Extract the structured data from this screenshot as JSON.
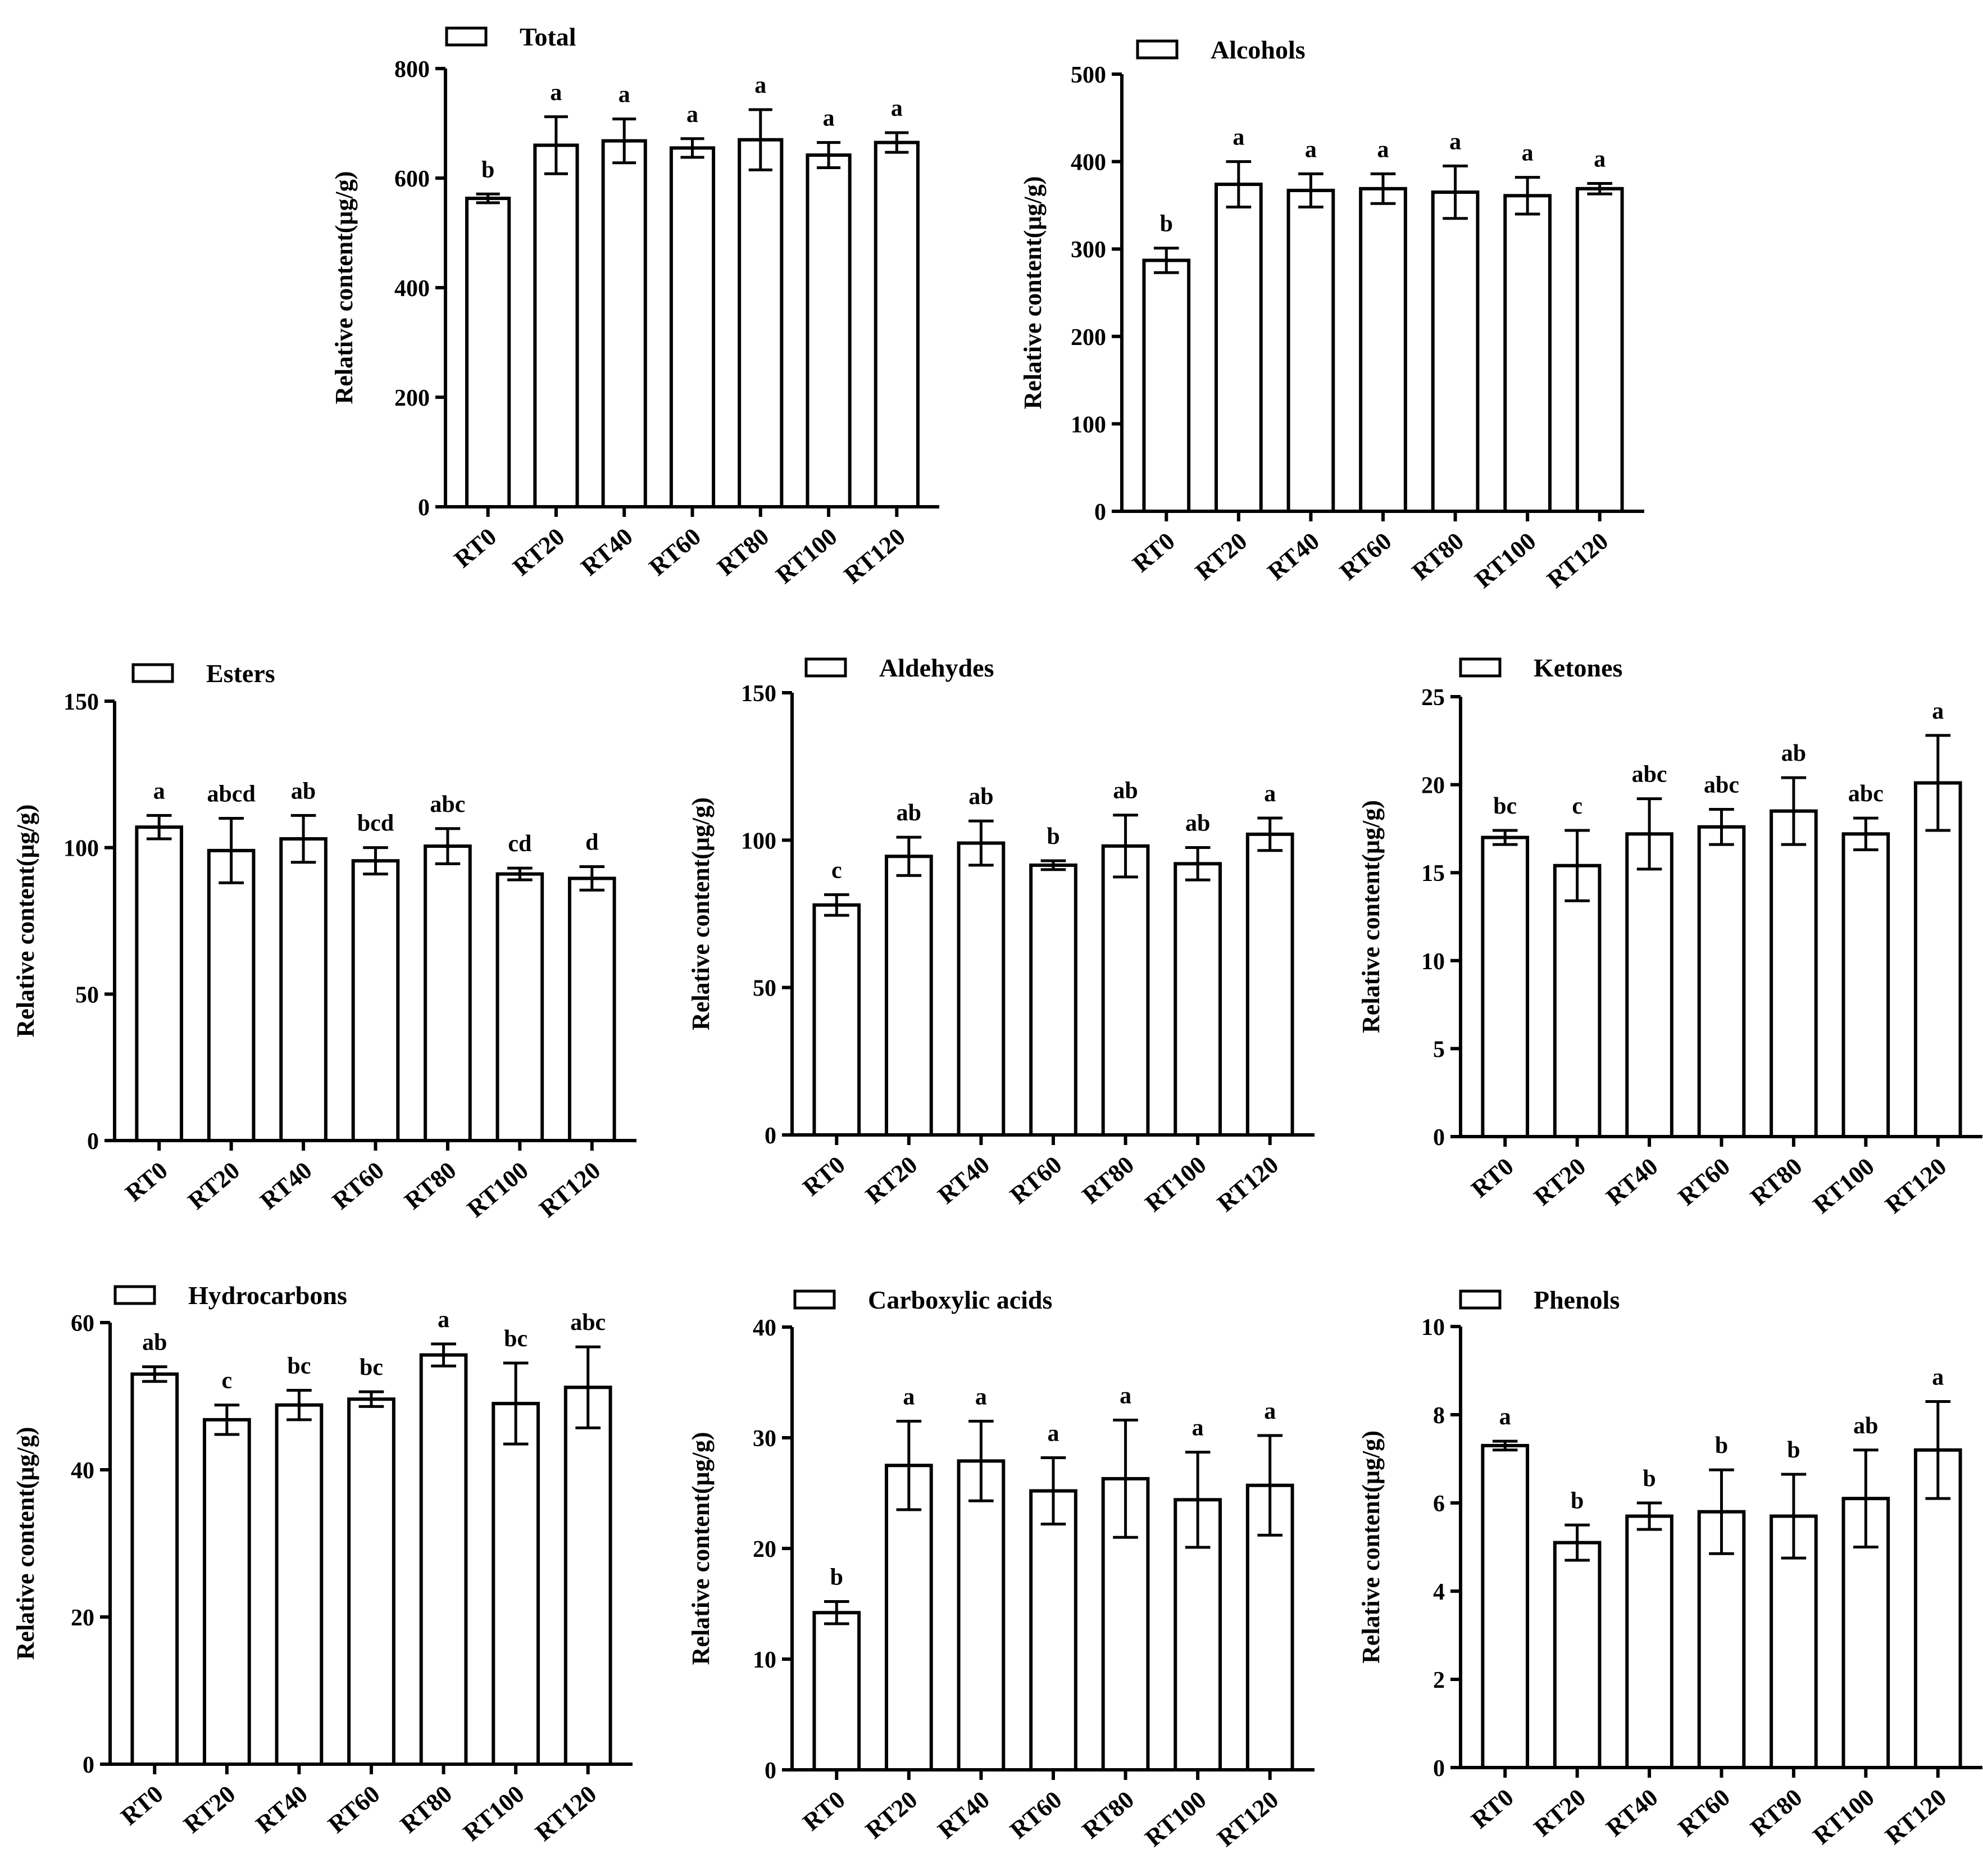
{
  "chart_data": [
    {
      "type": "bar",
      "title": "Total",
      "legend": "Total",
      "ylabel": "Relative content(μg/g)",
      "ylim": [
        0,
        800
      ],
      "yticks": [
        0,
        200,
        400,
        600,
        800
      ],
      "ytick_labels": [
        "0",
        "200",
        "400",
        "600",
        "800"
      ],
      "categories": [
        "RT0",
        "RT20",
        "RT40",
        "RT60",
        "RT80",
        "RT100",
        "RT120"
      ],
      "values": [
        563,
        660,
        668,
        655,
        670,
        642,
        665
      ],
      "errors": [
        8,
        52,
        40,
        17,
        55,
        23,
        18
      ],
      "significance": [
        "b",
        "a",
        "a",
        "a",
        "a",
        "a",
        "a"
      ]
    },
    {
      "type": "bar",
      "title": "Alcohols",
      "legend": "Alcohols",
      "ylabel": "Relative content(μg/g)",
      "ylim": [
        0,
        500
      ],
      "yticks": [
        0,
        100,
        200,
        300,
        400,
        500
      ],
      "ytick_labels": [
        "0",
        "100",
        "200",
        "300",
        "400",
        "500"
      ],
      "categories": [
        "RT0",
        "RT20",
        "RT40",
        "RT60",
        "RT80",
        "RT100",
        "RT120"
      ],
      "values": [
        287,
        374,
        367,
        369,
        365,
        361,
        369
      ],
      "errors": [
        14,
        26,
        19,
        17,
        30,
        21,
        6
      ],
      "significance": [
        "b",
        "a",
        "a",
        "a",
        "a",
        "a",
        "a"
      ]
    },
    {
      "type": "bar",
      "title": "Esters",
      "legend": "Esters",
      "ylabel": "Relative content(μg/g)",
      "ylim": [
        0,
        150
      ],
      "yticks": [
        0,
        50,
        100,
        150
      ],
      "ytick_labels": [
        "0",
        "50",
        "100",
        "150"
      ],
      "categories": [
        "RT0",
        "RT20",
        "RT40",
        "RT60",
        "RT80",
        "RT100",
        "RT120"
      ],
      "values": [
        107,
        99,
        103,
        95.5,
        100.5,
        91,
        89.5
      ],
      "errors": [
        4,
        11,
        8,
        4.5,
        6,
        2,
        4
      ],
      "significance": [
        "a",
        "abcd",
        "ab",
        "bcd",
        "abc",
        "cd",
        "d"
      ]
    },
    {
      "type": "bar",
      "title": "Aldehydes",
      "legend": "Aldehydes",
      "ylabel": "Relative content(μg/g)",
      "ylim": [
        0,
        150
      ],
      "yticks": [
        0,
        50,
        100,
        150
      ],
      "ytick_labels": [
        "0",
        "50",
        "100",
        "150"
      ],
      "categories": [
        "RT0",
        "RT20",
        "RT40",
        "RT60",
        "RT80",
        "RT100",
        "RT120"
      ],
      "values": [
        78,
        94.5,
        99,
        91.5,
        98,
        92,
        102
      ],
      "errors": [
        3.5,
        6.5,
        7.5,
        1.5,
        10.5,
        5.5,
        5.5
      ],
      "significance": [
        "c",
        "ab",
        "ab",
        "b",
        "ab",
        "ab",
        "a"
      ]
    },
    {
      "type": "bar",
      "title": "Ketones",
      "legend": "Ketones",
      "ylabel": "Relative content(μg/g)",
      "ylim": [
        0,
        25
      ],
      "yticks": [
        0,
        5,
        10,
        15,
        20,
        25
      ],
      "ytick_labels": [
        "0",
        "5",
        "10",
        "15",
        "20",
        "25"
      ],
      "categories": [
        "RT0",
        "RT20",
        "RT40",
        "RT60",
        "RT80",
        "RT100",
        "RT120"
      ],
      "values": [
        17,
        15.4,
        17.2,
        17.6,
        18.5,
        17.2,
        20.1
      ],
      "errors": [
        0.4,
        2,
        2,
        1,
        1.9,
        0.9,
        2.7
      ],
      "significance": [
        "bc",
        "c",
        "abc",
        "abc",
        "ab",
        "abc",
        "a"
      ]
    },
    {
      "type": "bar",
      "title": "Hydrocarbons",
      "legend": "Hydrocarbons",
      "ylabel": "Relative content(μg/g)",
      "ylim": [
        0,
        60
      ],
      "yticks": [
        0,
        20,
        40,
        60
      ],
      "ytick_labels": [
        "0",
        "20",
        "40",
        "60"
      ],
      "categories": [
        "RT0",
        "RT20",
        "RT40",
        "RT60",
        "RT80",
        "RT100",
        "RT120"
      ],
      "values": [
        53,
        46.8,
        48.8,
        49.6,
        55.6,
        49,
        51.2
      ],
      "errors": [
        1,
        2,
        2,
        1,
        1.5,
        5.5,
        5.5
      ],
      "significance": [
        "ab",
        "c",
        "bc",
        "bc",
        "a",
        "bc",
        "abc"
      ]
    },
    {
      "type": "bar",
      "title": "Carboxylic acids",
      "legend": "Carboxylic acids",
      "ylabel": "Relative content(μg/g)",
      "ylim": [
        0,
        40
      ],
      "yticks": [
        0,
        10,
        20,
        30,
        40
      ],
      "ytick_labels": [
        "0",
        "10",
        "20",
        "30",
        "40"
      ],
      "categories": [
        "RT0",
        "RT20",
        "RT40",
        "RT60",
        "RT80",
        "RT100",
        "RT120"
      ],
      "values": [
        14.2,
        27.5,
        27.9,
        25.2,
        26.3,
        24.4,
        25.7
      ],
      "errors": [
        1,
        4,
        3.6,
        3,
        5.3,
        4.3,
        4.5
      ],
      "significance": [
        "b",
        "a",
        "a",
        "a",
        "a",
        "a",
        "a"
      ]
    },
    {
      "type": "bar",
      "title": "Phenols",
      "legend": "Phenols",
      "ylabel": "Relative content(μg/g)",
      "ylim": [
        0,
        10
      ],
      "yticks": [
        0,
        2,
        4,
        6,
        8,
        10
      ],
      "ytick_labels": [
        "0",
        "2",
        "4",
        "6",
        "8",
        "10"
      ],
      "categories": [
        "RT0",
        "RT20",
        "RT40",
        "RT60",
        "RT80",
        "RT100",
        "RT120"
      ],
      "values": [
        7.3,
        5.1,
        5.7,
        5.8,
        5.7,
        6.1,
        7.2
      ],
      "errors": [
        0.1,
        0.4,
        0.3,
        0.95,
        0.95,
        1.1,
        1.1
      ],
      "significance": [
        "a",
        "b",
        "b",
        "b",
        "b",
        "ab",
        "a"
      ]
    }
  ]
}
